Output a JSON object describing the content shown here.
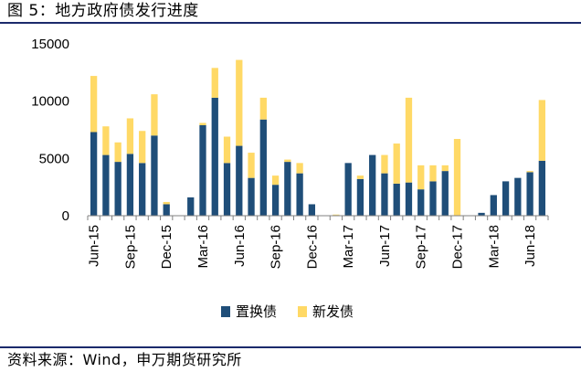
{
  "figure": {
    "title": "图 5：地方政府债发行进度",
    "source": "资料来源：Wind，申万期货研究所"
  },
  "chart_data": {
    "type": "bar",
    "stacked": true,
    "title": "",
    "xlabel": "",
    "ylabel": "",
    "ylim": [
      0,
      15000
    ],
    "yticks": [
      0,
      5000,
      10000,
      15000
    ],
    "grid": false,
    "legend": "bottom",
    "categories": [
      "Jun-15",
      "Jul-15",
      "Aug-15",
      "Sep-15",
      "Oct-15",
      "Nov-15",
      "Dec-15",
      "Jan-16",
      "Feb-16",
      "Mar-16",
      "Apr-16",
      "May-16",
      "Jun-16",
      "Jul-16",
      "Aug-16",
      "Sep-16",
      "Oct-16",
      "Nov-16",
      "Dec-16",
      "Jan-17",
      "Feb-17",
      "Mar-17",
      "Apr-17",
      "May-17",
      "Jun-17",
      "Jul-17",
      "Aug-17",
      "Sep-17",
      "Oct-17",
      "Nov-17",
      "Dec-17",
      "Jan-18",
      "Feb-18",
      "Mar-18",
      "Apr-18",
      "May-18",
      "Jun-18",
      "Jul-18"
    ],
    "tick_labels": [
      "Jun-15",
      "Sep-15",
      "Dec-15",
      "Mar-16",
      "Jun-16",
      "Sep-16",
      "Dec-16",
      "Mar-17",
      "Jun-17",
      "Sep-17",
      "Dec-17",
      "Mar-18",
      "Jun-18"
    ],
    "series": [
      {
        "name": "置换债",
        "color": "#1f4e79",
        "values": [
          7300,
          5300,
          4700,
          5400,
          4600,
          7000,
          1000,
          0,
          1600,
          7900,
          10300,
          4600,
          6100,
          3300,
          8400,
          2700,
          4700,
          3700,
          1000,
          0,
          50,
          4600,
          3200,
          5300,
          3700,
          2800,
          2900,
          2300,
          3000,
          3900,
          0,
          0,
          250,
          1800,
          3000,
          3300,
          3800,
          4800
        ]
      },
      {
        "name": "新发债",
        "color": "#ffd966",
        "values": [
          4900,
          2500,
          1700,
          3100,
          2800,
          3600,
          200,
          0,
          0,
          200,
          2600,
          2300,
          7500,
          2200,
          1900,
          800,
          200,
          900,
          0,
          0,
          50,
          0,
          300,
          0,
          1600,
          3500,
          7400,
          2100,
          1400,
          500,
          6700,
          0,
          0,
          0,
          0,
          0,
          100,
          5300
        ]
      }
    ]
  }
}
